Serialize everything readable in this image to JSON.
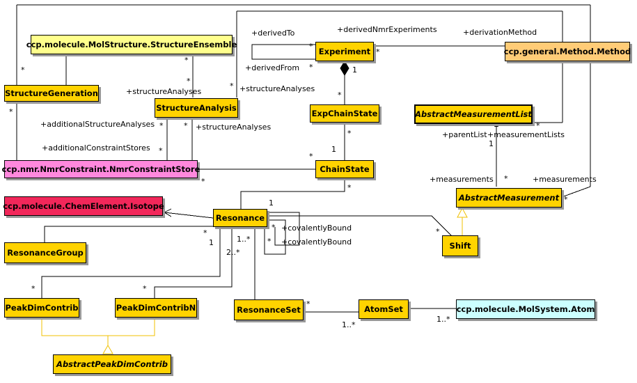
{
  "classes": {
    "structure_ensemble": "ccp.molecule.MolStructure.StructureEnsemble",
    "structure_generation": "StructureGeneration",
    "structure_analysis": "StructureAnalysis",
    "nmr_constraint_store": "ccp.nmr.NmrConstraint.NmrConstraintStore",
    "isotope": "ccp.molecule.ChemElement.Isotope",
    "resonance_group": "ResonanceGroup",
    "peak_dim_contrib": "PeakDimContrib",
    "peak_dim_contrib_n": "PeakDimContribN",
    "abstract_peak_dim_contrib": "AbstractPeakDimContrib",
    "resonance": "Resonance",
    "resonance_set": "ResonanceSet",
    "atom_set": "AtomSet",
    "atom": "ccp.molecule.MolSystem.Atom",
    "experiment": "Experiment",
    "method": "ccp.general.Method.Method",
    "exp_chain_state": "ExpChainState",
    "chain_state": "ChainState",
    "abstract_measurement_list": "AbstractMeasurementList",
    "abstract_measurement": "AbstractMeasurement",
    "shift": "Shift"
  },
  "roles": {
    "derived_to": "+derivedTo",
    "derived_nmr_experiments": "+derivedNmrExperiments",
    "derivation_method": "+derivationMethod",
    "derived_from": "+derivedFrom",
    "structure_analyses_a": "+structureAnalyses",
    "structure_analyses_b": "+structureAnalyses",
    "structure_analyses_c": "+structureAnalyses",
    "additional_structure_analyses": "+additionalStructureAnalyses",
    "additional_constraint_stores": "+additionalConstraintStores",
    "parent_list": "+parentList",
    "measurement_lists": "+measurementLists",
    "measurements_a": "+measurements",
    "measurements_b": "+measurements",
    "covalently_bound_a": "+covalentlyBound",
    "covalently_bound_b": "+covalentlyBound"
  },
  "multiplicities": {
    "m_sg_top": "*",
    "m_sg_bottom": "*",
    "m_se_bottom": "*",
    "m_sa_top": "*",
    "m_sa_right": "*",
    "m_sa_bl": "*",
    "m_sa_br": "*",
    "m_ncs_left": "*",
    "m_ncs_bottom": "*",
    "m_exp_left_top": "*",
    "m_exp_left_bottom": "*",
    "m_exp_right": "*",
    "m_exp_comp": "1",
    "m_ecs_top": "*",
    "m_ecs_bottom": "*",
    "m_cs_left": "*",
    "m_cs_top": "1",
    "m_cs_bottom": "*",
    "m_aml_right": "*",
    "m_aml_one": "1",
    "m_am_top": "*",
    "m_am_right": "*",
    "m_res_isotope": "1",
    "m_res_cov1": "*",
    "m_res_cov2": "*",
    "m_res_shift": "*",
    "m_res_rg_star": "*",
    "m_res_rg_one": "1",
    "m_res_pdcn": "1..*",
    "m_res_pdc": "2..*",
    "m_pdc_top": "*",
    "m_pdcn_top": "*",
    "m_rs_right": "*",
    "m_as_left": "1..*",
    "m_as_right": "1..*"
  }
}
